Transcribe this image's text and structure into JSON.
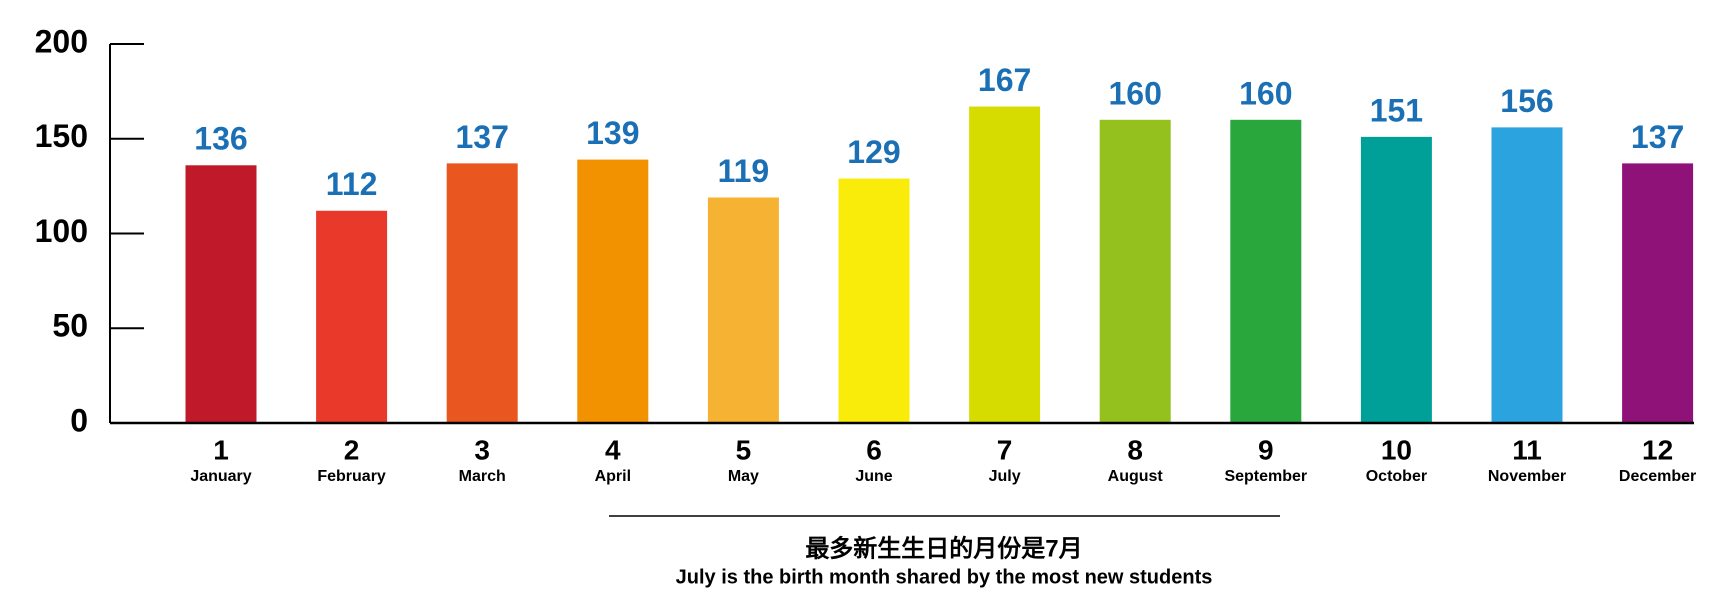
{
  "chart_data": {
    "type": "bar",
    "categories": [
      "1",
      "2",
      "3",
      "4",
      "5",
      "6",
      "7",
      "8",
      "9",
      "10",
      "11",
      "12"
    ],
    "month_names": [
      "January",
      "February",
      "March",
      "April",
      "May",
      "June",
      "July",
      "August",
      "September",
      "October",
      "November",
      "December"
    ],
    "values": [
      136,
      112,
      137,
      139,
      119,
      129,
      167,
      160,
      160,
      151,
      156,
      137
    ],
    "colors": [
      "#c0192a",
      "#e8392b",
      "#e9561f",
      "#f39200",
      "#f6b333",
      "#f9eb0a",
      "#d6dc00",
      "#95c11f",
      "#2aa73c",
      "#009f98",
      "#2aa3de",
      "#8e1278"
    ],
    "value_label_color": "#1a6fb5",
    "ylim": [
      0,
      200
    ],
    "yticks": [
      0,
      50,
      100,
      150,
      200
    ],
    "grid": false,
    "notes": [
      "最多新生生日的月份是7月",
      "July is the birth month shared by the most new students"
    ]
  }
}
